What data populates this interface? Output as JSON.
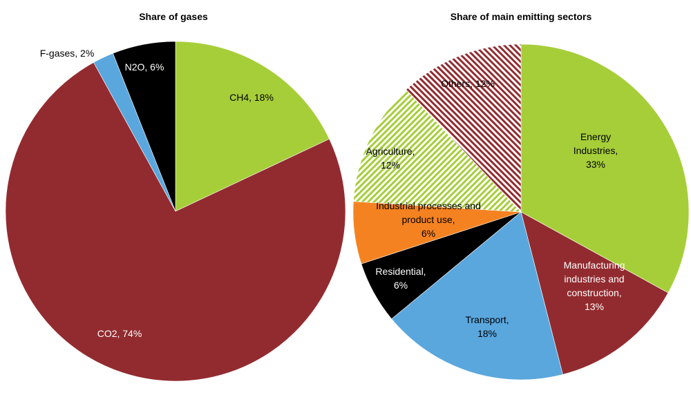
{
  "chart_data": [
    {
      "type": "pie",
      "title": "Share of gases",
      "slices": [
        {
          "label_lines": [
            "CH4, 18%"
          ],
          "value": 18,
          "color": "#a6ce39",
          "pattern": "solid",
          "text_color": "#000000"
        },
        {
          "label_lines": [
            "CO2, 74%"
          ],
          "value": 74,
          "color": "#922b2f",
          "pattern": "solid",
          "text_color": "#ffffff"
        },
        {
          "label_lines": [
            "F-gases, 2%"
          ],
          "value": 2,
          "color": "#5aa7de",
          "pattern": "solid",
          "text_color": "#000000"
        },
        {
          "label_lines": [
            "N2O, 6%"
          ],
          "value": 6,
          "color": "#000000",
          "pattern": "solid",
          "text_color": "#ffffff"
        }
      ]
    },
    {
      "type": "pie",
      "title": "Share of main emitting sectors",
      "slices": [
        {
          "label_lines": [
            "Energy",
            "Industries,",
            "33%"
          ],
          "value": 33,
          "color": "#a6ce39",
          "pattern": "solid",
          "text_color": "#000000"
        },
        {
          "label_lines": [
            "Manufacturing",
            "industries and",
            "construction,",
            "13%"
          ],
          "value": 13,
          "color": "#922b2f",
          "pattern": "solid",
          "text_color": "#ffffff"
        },
        {
          "label_lines": [
            "Transport,",
            "18%"
          ],
          "value": 18,
          "color": "#5aa7de",
          "pattern": "solid",
          "text_color": "#000000"
        },
        {
          "label_lines": [
            "Residential,",
            "6%"
          ],
          "value": 6,
          "color": "#000000",
          "pattern": "solid",
          "text_color": "#ffffff"
        },
        {
          "label_lines": [
            "Industrial processes and",
            "product use,",
            "6%"
          ],
          "value": 6,
          "color": "#f58220",
          "pattern": "solid",
          "text_color": "#000000"
        },
        {
          "label_lines": [
            "Agriculture,",
            "12%"
          ],
          "value": 12,
          "color": "#a6ce39",
          "pattern": "hatched",
          "text_color": "#000000"
        },
        {
          "label_lines": [
            "Others, 12%"
          ],
          "value": 12,
          "color": "#922b2f",
          "pattern": "hatched",
          "text_color": "#000000"
        }
      ]
    }
  ]
}
